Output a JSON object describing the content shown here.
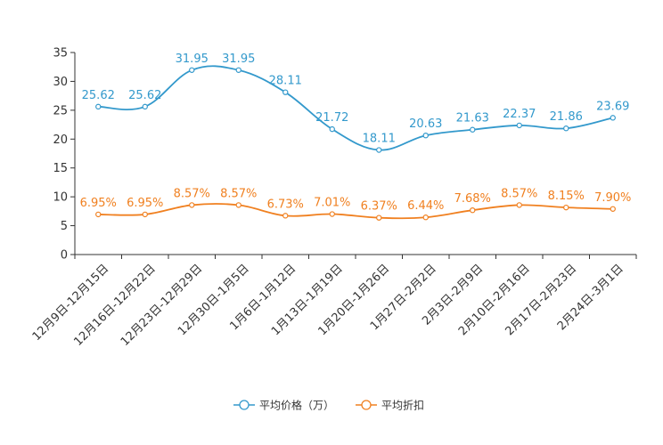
{
  "chart_data": {
    "type": "line",
    "categories": [
      "12月9日-12月15日",
      "12月16日-12月22日",
      "12月23日-12月29日",
      "12月30日-1月5日",
      "1月6日-1月12日",
      "1月13日-1月19日",
      "1月20日-1月26日",
      "1月27日-2月2日",
      "2月3日-2月9日",
      "2月10日-2月16日",
      "2月17日-2月23日",
      "2月24日-3月1日"
    ],
    "ylim": [
      0,
      35
    ],
    "yticks": [
      0,
      5,
      10,
      15,
      20,
      25,
      30,
      35
    ],
    "series": [
      {
        "name": "平均价格（万）",
        "color": "#3399cc",
        "values": [
          25.62,
          25.62,
          31.95,
          31.95,
          28.11,
          21.72,
          18.11,
          20.63,
          21.63,
          22.37,
          21.86,
          23.69
        ],
        "labels": [
          "25.62",
          "25.62",
          "31.95",
          "31.95",
          "28.11",
          "21.72",
          "18.11",
          "20.63",
          "21.63",
          "22.37",
          "21.86",
          "23.69"
        ]
      },
      {
        "name": "平均折扣",
        "color": "#f08020",
        "values": [
          6.95,
          6.95,
          8.57,
          8.57,
          6.73,
          7.01,
          6.37,
          6.44,
          7.68,
          8.57,
          8.15,
          7.9
        ],
        "labels": [
          "6.95%",
          "6.95%",
          "8.57%",
          "8.57%",
          "6.73%",
          "7.01%",
          "6.37%",
          "6.44%",
          "7.68%",
          "8.57%",
          "8.15%",
          "7.90%"
        ]
      }
    ],
    "legend": "bottom-center"
  }
}
